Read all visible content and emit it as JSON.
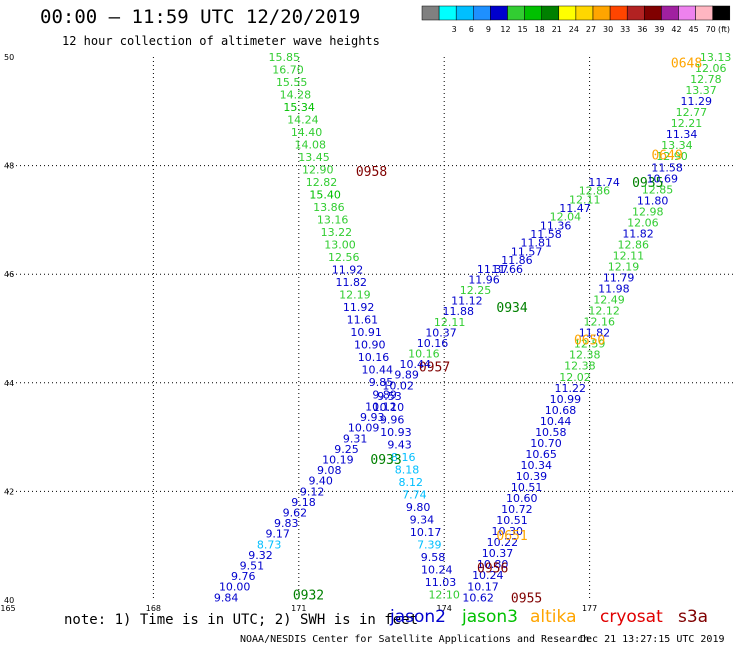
{
  "header": {
    "title": "00:00 – 11:59 UTC 12/20/2019",
    "subtitle": "12 hour collection of altimeter wave heights"
  },
  "colorbar": {
    "unit": "(ft)",
    "bins": [
      {
        "color": "#808080",
        "label": ""
      },
      {
        "color": "#00ffff",
        "label": "3"
      },
      {
        "color": "#00bfff",
        "label": "6"
      },
      {
        "color": "#1e90ff",
        "label": "9"
      },
      {
        "color": "#0000cd",
        "label": "12"
      },
      {
        "color": "#32cd32",
        "label": "15"
      },
      {
        "color": "#00c000",
        "label": "18"
      },
      {
        "color": "#008000",
        "label": "21"
      },
      {
        "color": "#ffff00",
        "label": "24"
      },
      {
        "color": "#ffd700",
        "label": "27"
      },
      {
        "color": "#ffa500",
        "label": "30"
      },
      {
        "color": "#ff4500",
        "label": "33"
      },
      {
        "color": "#b22222",
        "label": "36"
      },
      {
        "color": "#800000",
        "label": "39"
      },
      {
        "color": "#a020a0",
        "label": "42"
      },
      {
        "color": "#ee82ee",
        "label": "45"
      },
      {
        "color": "#ffb6c1",
        "label": "70"
      },
      {
        "color": "#000000",
        "label": ""
      }
    ]
  },
  "map": {
    "x_ticks": [
      "165",
      "168",
      "171",
      "174",
      "177"
    ],
    "y_ticks": [
      "40",
      "42",
      "44",
      "46",
      "48",
      "50"
    ],
    "lon_range": [
      165,
      180
    ],
    "lat_range": [
      40,
      50
    ],
    "tracks": [
      {
        "name": "0958",
        "color": "#800000",
        "label": {
          "lon": 172.5,
          "lat": 47.9
        },
        "values": [
          "15.85",
          "16.70",
          "15.55",
          "14.28",
          "15.34",
          "14.24",
          "14.40",
          "14.08",
          "13.45",
          "12.90",
          "12.82",
          "15.40",
          "13.86",
          "13.16",
          "13.22",
          "13.00",
          "12.56",
          "11.92",
          "11.82",
          "12.19",
          "11.92",
          "11.61",
          "10.91",
          "10.90",
          "10.16",
          "10.44",
          "9.85",
          "9.89",
          "10.10",
          "9.96",
          "10.93",
          "9.43",
          "8.16",
          "8.18",
          "8.12",
          "7.74",
          "9.80",
          "9.34",
          "10.17",
          "7.39",
          "9.58",
          "10.24",
          "11.03",
          "12.10"
        ],
        "colors": [
          "#32cd32",
          "#32cd32",
          "#32cd32",
          "#32cd32",
          "#00c000",
          "#32cd32",
          "#32cd32",
          "#32cd32",
          "#32cd32",
          "#32cd32",
          "#32cd32",
          "#00c000",
          "#32cd32",
          "#32cd32",
          "#32cd32",
          "#32cd32",
          "#32cd32",
          "#0000cd",
          "#0000cd",
          "#32cd32",
          "#0000cd",
          "#0000cd",
          "#0000cd",
          "#0000cd",
          "#0000cd",
          "#0000cd",
          "#0000cd",
          "#0000cd",
          "#0000cd",
          "#0000cd",
          "#0000cd",
          "#0000cd",
          "#00bfff",
          "#00bfff",
          "#00bfff",
          "#00bfff",
          "#0000cd",
          "#0000cd",
          "#0000cd",
          "#00bfff",
          "#0000cd",
          "#0000cd",
          "#0000cd",
          "#32cd32"
        ],
        "start": {
          "lon": 170.7,
          "lat": 50.0
        },
        "end": {
          "lon": 174.0,
          "lat": 40.1
        }
      },
      {
        "name": "0957",
        "color": "#800000",
        "label": {
          "lon": 173.8,
          "lat": 44.3
        }
      },
      {
        "name": "0933",
        "color": "#008000",
        "label": {
          "lon": 172.8,
          "lat": 42.6
        },
        "values": [
          "11.37",
          "11.96",
          "12.25",
          "11.12",
          "11.88",
          "12.11",
          "10.37",
          "10.16",
          "10.16",
          "10.44",
          "9.89",
          "10.02",
          "9.53",
          "10.12",
          "9.93",
          "10.09",
          "9.31",
          "9.25",
          "10.19",
          "9.08",
          "9.40",
          "9.12",
          "9.18",
          "9.62",
          "9.83",
          "9.17",
          "8.73",
          "9.32",
          "9.51",
          "9.76",
          "10.00",
          "9.84"
        ],
        "colors": [
          "#0000cd",
          "#0000cd",
          "#32cd32",
          "#0000cd",
          "#0000cd",
          "#32cd32",
          "#0000cd",
          "#0000cd",
          "#32cd32",
          "#0000cd",
          "#0000cd",
          "#0000cd",
          "#0000cd",
          "#0000cd",
          "#0000cd",
          "#0000cd",
          "#0000cd",
          "#0000cd",
          "#0000cd",
          "#0000cd",
          "#0000cd",
          "#0000cd",
          "#0000cd",
          "#0000cd",
          "#0000cd",
          "#0000cd",
          "#00bfff",
          "#0000cd",
          "#0000cd",
          "#0000cd",
          "#0000cd",
          "#0000cd"
        ],
        "start": {
          "lon": 175.0,
          "lat": 46.1
        },
        "end": {
          "lon": 169.5,
          "lat": 40.05
        }
      },
      {
        "name": "0932",
        "color": "#008000",
        "label": {
          "lon": 171.2,
          "lat": 40.1
        }
      },
      {
        "name": "0934",
        "color": "#008000",
        "label": {
          "lon": 175.4,
          "lat": 45.4
        },
        "values": [
          "11.74",
          "12.86",
          "12.11",
          "11.47",
          "12.04",
          "11.36",
          "11.58",
          "11.81",
          "11.57",
          "11.86",
          "11.66"
        ],
        "colors": [
          "#0000cd",
          "#32cd32",
          "#32cd32",
          "#0000cd",
          "#32cd32",
          "#0000cd",
          "#0000cd",
          "#0000cd",
          "#0000cd",
          "#0000cd",
          "#0000cd"
        ],
        "start": {
          "lon": 177.3,
          "lat": 47.7
        },
        "end": {
          "lon": 175.3,
          "lat": 46.1
        }
      },
      {
        "name": "0935",
        "color": "#008000",
        "label": {
          "lon": 178.2,
          "lat": 47.7
        }
      },
      {
        "name": "0648",
        "color": "#ffa500",
        "label": {
          "lon": 179.0,
          "lat": 49.9
        },
        "values": [
          "13.13",
          "12.06",
          "12.78",
          "13.37",
          "11.29",
          "12.77",
          "12.21",
          "11.34",
          "13.34",
          "12.90",
          "11.58",
          "10.69",
          "12.85",
          "11.80",
          "12.98",
          "12.06",
          "11.82",
          "12.86",
          "12.11",
          "12.19",
          "11.79",
          "11.98",
          "12.49",
          "12.12",
          "12.16",
          "11.82",
          "12.59",
          "12.38",
          "12.38",
          "12.02",
          "11.22",
          "10.99",
          "10.68",
          "10.44",
          "10.58",
          "10.70",
          "10.65",
          "10.34",
          "10.39",
          "10.51",
          "10.60",
          "10.72",
          "10.51",
          "10.30",
          "10.22",
          "10.37",
          "10.80",
          "10.24",
          "10.17",
          "10.62"
        ],
        "colors": [
          "#32cd32",
          "#32cd32",
          "#32cd32",
          "#32cd32",
          "#0000cd",
          "#32cd32",
          "#32cd32",
          "#0000cd",
          "#32cd32",
          "#32cd32",
          "#0000cd",
          "#0000cd",
          "#32cd32",
          "#0000cd",
          "#32cd32",
          "#32cd32",
          "#0000cd",
          "#32cd32",
          "#32cd32",
          "#32cd32",
          "#0000cd",
          "#0000cd",
          "#32cd32",
          "#32cd32",
          "#32cd32",
          "#0000cd",
          "#32cd32",
          "#32cd32",
          "#32cd32",
          "#32cd32",
          "#0000cd",
          "#0000cd",
          "#0000cd",
          "#0000cd",
          "#0000cd",
          "#0000cd",
          "#0000cd",
          "#0000cd",
          "#0000cd",
          "#0000cd",
          "#0000cd",
          "#0000cd",
          "#0000cd",
          "#0000cd",
          "#0000cd",
          "#0000cd",
          "#0000cd",
          "#0000cd",
          "#0000cd",
          "#0000cd"
        ],
        "start": {
          "lon": 179.6,
          "lat": 50.0
        },
        "end": {
          "lon": 174.7,
          "lat": 40.05
        }
      },
      {
        "name": "0649",
        "color": "#ffa500",
        "label": {
          "lon": 178.6,
          "lat": 48.2
        }
      },
      {
        "name": "0650",
        "color": "#ffa500",
        "label": {
          "lon": 177.0,
          "lat": 44.8
        }
      },
      {
        "name": "0651",
        "color": "#ffa500",
        "label": {
          "lon": 175.4,
          "lat": 41.2
        }
      },
      {
        "name": "0956",
        "color": "#800000",
        "label": {
          "lon": 175.0,
          "lat": 40.6
        }
      },
      {
        "name": "0955",
        "color": "#800000",
        "label": {
          "lon": 175.7,
          "lat": 40.05
        }
      }
    ]
  },
  "footer": {
    "note": "note: 1) Time is in UTC; 2) SWH is in feet",
    "legend": [
      {
        "name": "jason2",
        "color": "#0000cd"
      },
      {
        "name": "jason3",
        "color": "#00c000"
      },
      {
        "name": "altika",
        "color": "#ffa500"
      },
      {
        "name": "cryosat",
        "color": "#e00000"
      },
      {
        "name": "s3a",
        "color": "#800000"
      }
    ],
    "credit": "NOAA/NESDIS Center for Satellite Applications and Research",
    "timestamp": "Dec 21 13:27:15 UTC 2019"
  }
}
